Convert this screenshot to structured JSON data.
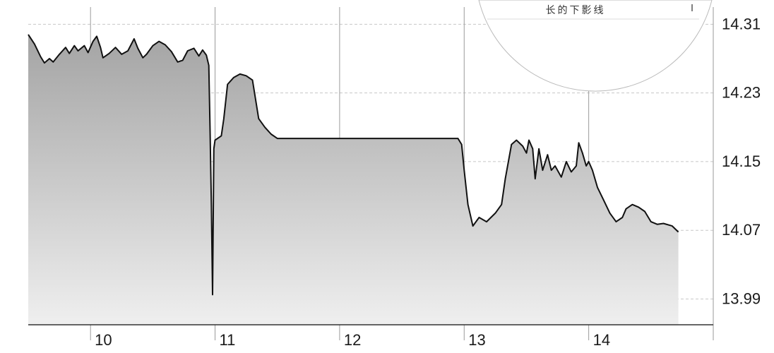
{
  "chart_data": {
    "type": "area",
    "title": "",
    "xlabel": "",
    "ylabel": "",
    "x_ticks": [
      "10",
      "11",
      "12",
      "13",
      "14"
    ],
    "y_ticks": [
      "14.31",
      "14.23",
      "14.15",
      "14.07",
      "13.99"
    ],
    "ylim": [
      13.96,
      14.33
    ],
    "xlim": [
      9.5,
      15.0
    ],
    "grid": true,
    "series": [
      {
        "points": [
          [
            9.5,
            14.298
          ],
          [
            9.55,
            14.287
          ],
          [
            9.6,
            14.272
          ],
          [
            9.63,
            14.265
          ],
          [
            9.67,
            14.27
          ],
          [
            9.7,
            14.266
          ],
          [
            9.75,
            14.275
          ],
          [
            9.8,
            14.283
          ],
          [
            9.83,
            14.276
          ],
          [
            9.87,
            14.285
          ],
          [
            9.9,
            14.279
          ],
          [
            9.95,
            14.285
          ],
          [
            9.98,
            14.277
          ],
          [
            10.02,
            14.29
          ],
          [
            10.05,
            14.296
          ],
          [
            10.08,
            14.283
          ],
          [
            10.1,
            14.271
          ],
          [
            10.15,
            14.276
          ],
          [
            10.2,
            14.283
          ],
          [
            10.25,
            14.275
          ],
          [
            10.3,
            14.279
          ],
          [
            10.35,
            14.293
          ],
          [
            10.38,
            14.282
          ],
          [
            10.42,
            14.271
          ],
          [
            10.45,
            14.275
          ],
          [
            10.5,
            14.285
          ],
          [
            10.55,
            14.29
          ],
          [
            10.6,
            14.286
          ],
          [
            10.65,
            14.278
          ],
          [
            10.7,
            14.266
          ],
          [
            10.74,
            14.268
          ],
          [
            10.78,
            14.279
          ],
          [
            10.83,
            14.282
          ],
          [
            10.87,
            14.273
          ],
          [
            10.9,
            14.28
          ],
          [
            10.93,
            14.274
          ],
          [
            10.95,
            14.262
          ],
          [
            10.96,
            14.185
          ],
          [
            10.97,
            14.1
          ],
          [
            10.98,
            13.995
          ],
          [
            10.99,
            14.165
          ],
          [
            11.0,
            14.175
          ],
          [
            11.05,
            14.18
          ],
          [
            11.07,
            14.2
          ],
          [
            11.1,
            14.24
          ],
          [
            11.15,
            14.248
          ],
          [
            11.2,
            14.252
          ],
          [
            11.25,
            14.25
          ],
          [
            11.3,
            14.245
          ],
          [
            11.35,
            14.2
          ],
          [
            11.4,
            14.19
          ],
          [
            11.45,
            14.182
          ],
          [
            11.5,
            14.177
          ],
          [
            12.0,
            14.177
          ],
          [
            12.5,
            14.177
          ],
          [
            12.95,
            14.177
          ],
          [
            12.98,
            14.17
          ],
          [
            13.0,
            14.14
          ],
          [
            13.03,
            14.1
          ],
          [
            13.07,
            14.075
          ],
          [
            13.12,
            14.085
          ],
          [
            13.18,
            14.08
          ],
          [
            13.25,
            14.09
          ],
          [
            13.3,
            14.1
          ],
          [
            13.33,
            14.13
          ],
          [
            13.38,
            14.17
          ],
          [
            13.42,
            14.175
          ],
          [
            13.47,
            14.168
          ],
          [
            13.5,
            14.16
          ],
          [
            13.52,
            14.175
          ],
          [
            13.55,
            14.165
          ],
          [
            13.57,
            14.13
          ],
          [
            13.6,
            14.165
          ],
          [
            13.63,
            14.14
          ],
          [
            13.67,
            14.158
          ],
          [
            13.7,
            14.14
          ],
          [
            13.73,
            14.145
          ],
          [
            13.78,
            14.132
          ],
          [
            13.82,
            14.15
          ],
          [
            13.86,
            14.138
          ],
          [
            13.9,
            14.145
          ],
          [
            13.92,
            14.172
          ],
          [
            13.95,
            14.16
          ],
          [
            13.98,
            14.145
          ],
          [
            14.0,
            14.15
          ],
          [
            14.03,
            14.14
          ],
          [
            14.07,
            14.12
          ],
          [
            14.12,
            14.105
          ],
          [
            14.17,
            14.09
          ],
          [
            14.22,
            14.08
          ],
          [
            14.27,
            14.085
          ],
          [
            14.3,
            14.095
          ],
          [
            14.35,
            14.1
          ],
          [
            14.4,
            14.097
          ],
          [
            14.45,
            14.092
          ],
          [
            14.5,
            14.08
          ],
          [
            14.55,
            14.077
          ],
          [
            14.6,
            14.078
          ],
          [
            14.67,
            14.075
          ],
          [
            14.72,
            14.068
          ]
        ]
      }
    ]
  },
  "callout": {
    "text": "长的下影线"
  }
}
